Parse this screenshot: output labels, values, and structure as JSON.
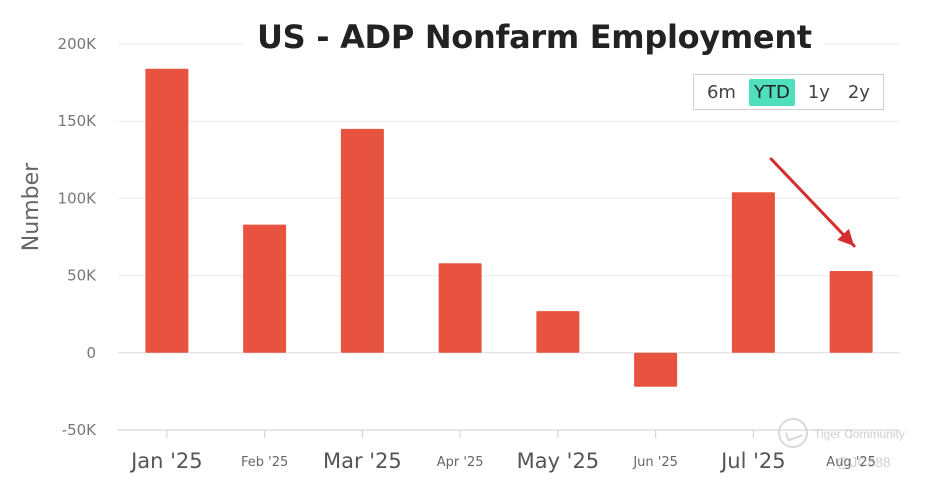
{
  "chart_data": {
    "type": "bar",
    "title": "US - ADP Nonfarm Employment",
    "xlabel": "",
    "ylabel": "Number",
    "ylim": [
      -50000,
      200000
    ],
    "yticks": [
      {
        "value": 200000,
        "label": "200K"
      },
      {
        "value": 150000,
        "label": "150K"
      },
      {
        "value": 100000,
        "label": "100K"
      },
      {
        "value": 50000,
        "label": "50K"
      },
      {
        "value": 0,
        "label": "0"
      },
      {
        "value": -50000,
        "label": "-50K"
      }
    ],
    "categories": [
      "Jan '25",
      "Feb '25",
      "Mar '25",
      "Apr '25",
      "May '25",
      "Jun '25",
      "Jul '25",
      "Aug '25"
    ],
    "category_emphasis": [
      "major",
      "minor",
      "major",
      "minor",
      "major",
      "minor",
      "major",
      "minor"
    ],
    "values": [
      184000,
      83000,
      145000,
      58000,
      27000,
      -22000,
      104000,
      53000
    ],
    "bar_color": "#e8533f",
    "grid": true,
    "annotation": {
      "type": "arrow",
      "target_category": "Aug '25",
      "color": "#d32f2f"
    }
  },
  "range_selector": {
    "options": [
      "6m",
      "YTD",
      "1y",
      "2y"
    ],
    "selected": "YTD",
    "active_color": "#4fdfbd"
  },
  "watermark": {
    "brand": "Tiger Community",
    "handle": "@JC888"
  }
}
